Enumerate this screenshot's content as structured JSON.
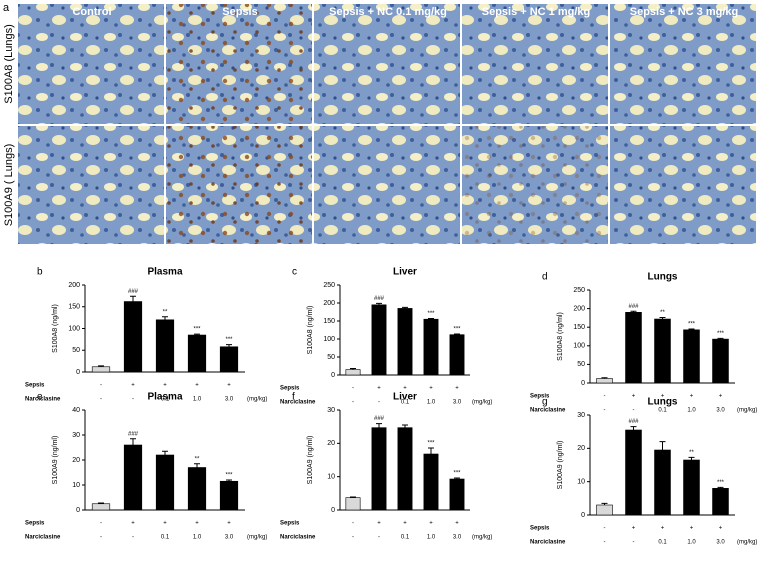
{
  "figure_label": "a",
  "columns": [
    "Control",
    "Sepsis",
    "Sepsis + NC 0.1 mg/kg",
    "Sepsis + NC 1 mg/kg",
    "Sepsis + NC 3 mg/kg"
  ],
  "rows": [
    "S100A8 (Lungs)",
    "S100A9 ( Lungs)"
  ],
  "chart_data": [
    {
      "type": "bar",
      "panel": "b",
      "title": "Plasma",
      "y_label": "S100A8 (ng/ml)",
      "values": [
        12,
        162,
        120,
        85,
        58
      ],
      "errors": [
        2,
        12,
        7,
        2,
        5
      ],
      "colors": [
        "#d9d9d9",
        "#000000",
        "#000000",
        "#000000",
        "#000000"
      ],
      "annotations": [
        null,
        "###",
        "**",
        "***",
        "***"
      ],
      "ylim": [
        0,
        200
      ],
      "yticks": [
        0,
        50,
        100,
        150,
        200
      ],
      "table": {
        "row_labels": [
          "Sepsis",
          "Narciclasine"
        ],
        "rows": [
          [
            "-",
            "+",
            "+",
            "+",
            "+"
          ],
          [
            "-",
            "-",
            "0.1",
            "1.0",
            "3.0"
          ]
        ],
        "unit": "(mg/kg)"
      }
    },
    {
      "type": "bar",
      "panel": "c",
      "title": "Liver",
      "y_label": "S100A8 (ng/ml)",
      "values": [
        15,
        195,
        185,
        155,
        112
      ],
      "errors": [
        3,
        4,
        3,
        2,
        2
      ],
      "colors": [
        "#d9d9d9",
        "#000000",
        "#000000",
        "#000000",
        "#000000"
      ],
      "annotations": [
        null,
        "###",
        null,
        "***",
        "***"
      ],
      "ylim": [
        0,
        250
      ],
      "yticks": [
        0,
        50,
        100,
        150,
        200,
        250
      ],
      "table": {
        "row_labels": [
          "Sepsis",
          "Narciclasine"
        ],
        "rows": [
          [
            "-",
            "+",
            "+",
            "+",
            "+"
          ],
          [
            "-",
            "-",
            "0.1",
            "1.0",
            "3.0"
          ]
        ],
        "unit": "(mg/kg)"
      }
    },
    {
      "type": "bar",
      "panel": "d",
      "title": "Lungs",
      "y_label": "S100A8 (ng/ml)",
      "values": [
        12,
        190,
        172,
        143,
        118
      ],
      "errors": [
        2,
        3,
        4,
        2,
        2
      ],
      "colors": [
        "#d9d9d9",
        "#000000",
        "#000000",
        "#000000",
        "#000000"
      ],
      "annotations": [
        null,
        "###",
        "**",
        "***",
        "***"
      ],
      "ylim": [
        0,
        250
      ],
      "yticks": [
        0,
        50,
        100,
        150,
        200,
        250
      ],
      "table": {
        "row_labels": [
          "Sepsis",
          "Narciclasine"
        ],
        "rows": [
          [
            "-",
            "+",
            "+",
            "+",
            "+"
          ],
          [
            "-",
            "-",
            "0.1",
            "1.0",
            "3.0"
          ]
        ],
        "unit": "(mg/kg)"
      }
    },
    {
      "type": "bar",
      "panel": "e",
      "title": "Plasma",
      "y_label": "S100A9 (ng/ml)",
      "values": [
        2.5,
        26,
        22,
        17,
        11.5
      ],
      "errors": [
        0.3,
        2.5,
        1.5,
        1.5,
        0.5
      ],
      "colors": [
        "#d9d9d9",
        "#000000",
        "#000000",
        "#000000",
        "#000000"
      ],
      "annotations": [
        null,
        "###",
        null,
        "**",
        "***"
      ],
      "ylim": [
        0,
        40
      ],
      "yticks": [
        0,
        10,
        20,
        30,
        40
      ],
      "table": {
        "row_labels": [
          "Sepsis",
          "Narciclasine"
        ],
        "rows": [
          [
            "-",
            "+",
            "+",
            "+",
            "+"
          ],
          [
            "-",
            "-",
            "0.1",
            "1.0",
            "3.0"
          ]
        ],
        "unit": "(mg/kg)"
      }
    },
    {
      "type": "bar",
      "panel": "f",
      "title": "Liver",
      "y_label": "S100A9 (ng/ml)",
      "values": [
        3.7,
        24.7,
        24.7,
        16.8,
        9.3
      ],
      "errors": [
        0.2,
        1.2,
        0.8,
        1.8,
        0.3
      ],
      "colors": [
        "#d9d9d9",
        "#000000",
        "#000000",
        "#000000",
        "#000000"
      ],
      "annotations": [
        null,
        "###",
        null,
        "***",
        "***"
      ],
      "ylim": [
        0,
        30
      ],
      "yticks": [
        0,
        10,
        20,
        30
      ],
      "table": {
        "row_labels": [
          "Sepsis",
          "Narciclasine"
        ],
        "rows": [
          [
            "-",
            "+",
            "+",
            "+",
            "+"
          ],
          [
            "-",
            "-",
            "0.1",
            "1.0",
            "3.0"
          ]
        ],
        "unit": "(mg/kg)"
      }
    },
    {
      "type": "bar",
      "panel": "g",
      "title": "Lungs",
      "y_label": "S100A9 (ng/ml)",
      "values": [
        3,
        25.5,
        19.5,
        16.5,
        8
      ],
      "errors": [
        0.5,
        1,
        2.5,
        0.8,
        0.3
      ],
      "colors": [
        "#d9d9d9",
        "#000000",
        "#000000",
        "#000000",
        "#000000"
      ],
      "annotations": [
        null,
        "###",
        null,
        "**",
        "***"
      ],
      "ylim": [
        0,
        30
      ],
      "yticks": [
        0,
        10,
        20,
        30
      ],
      "table": {
        "row_labels": [
          "Sepsis",
          "Narciclasine"
        ],
        "rows": [
          [
            "-",
            "+",
            "+",
            "+",
            "+"
          ],
          [
            "-",
            "-",
            "0.1",
            "1.0",
            "3.0"
          ]
        ],
        "unit": "(mg/kg)"
      }
    }
  ]
}
